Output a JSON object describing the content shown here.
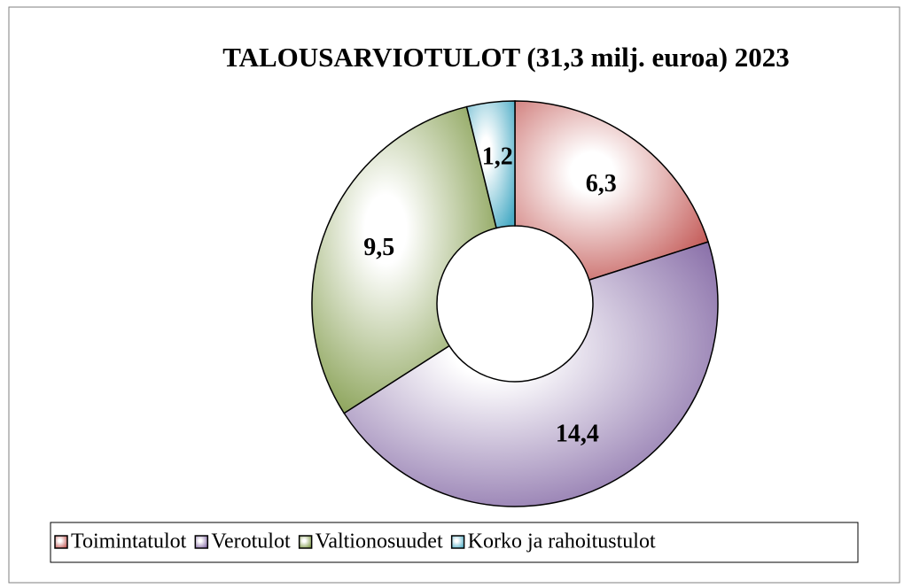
{
  "chart_data": {
    "type": "donut",
    "title": "TALOUSARVIOTULOT (31,3 milj. euroa) 2023",
    "categories": [
      "Toimintatulot",
      "Verotulot",
      "Valtionosuudet",
      "Korko ja rahoitustulot"
    ],
    "values": [
      6.3,
      14.4,
      9.5,
      1.2
    ],
    "value_labels": [
      "6,3",
      "14,4",
      "9,5",
      "1,2"
    ],
    "colors": [
      "#c0504d",
      "#8064a2",
      "#77933c",
      "#4bacc6"
    ],
    "legend": "bottom"
  }
}
